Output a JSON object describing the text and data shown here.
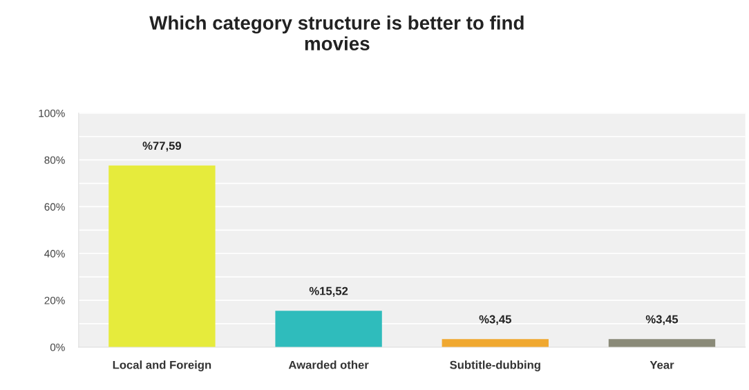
{
  "chart_data": {
    "type": "bar",
    "title": "Which category structure is better to find\nmovies",
    "categories": [
      "Local and Foreign",
      "Awarded other",
      "Subtitle-dubbing",
      "Year"
    ],
    "values": [
      77.59,
      15.52,
      3.45,
      3.45
    ],
    "colors": [
      "#e6eb3c",
      "#2fbcbc",
      "#f0a830",
      "#8a8a78"
    ],
    "value_labels": [
      "%77,59",
      "%15,52",
      "%3,45",
      "%3,45"
    ],
    "ylim": [
      0,
      100
    ],
    "yticks": [
      {
        "value": 0,
        "label": "0%"
      },
      {
        "value": 10,
        "label": null
      },
      {
        "value": 20,
        "label": "20%"
      },
      {
        "value": 30,
        "label": null
      },
      {
        "value": 40,
        "label": "40%"
      },
      {
        "value": 50,
        "label": null
      },
      {
        "value": 60,
        "label": "60%"
      },
      {
        "value": 70,
        "label": null
      },
      {
        "value": 80,
        "label": "80%"
      },
      {
        "value": 90,
        "label": null
      },
      {
        "value": 100,
        "label": "100%"
      }
    ],
    "grid": "y"
  }
}
